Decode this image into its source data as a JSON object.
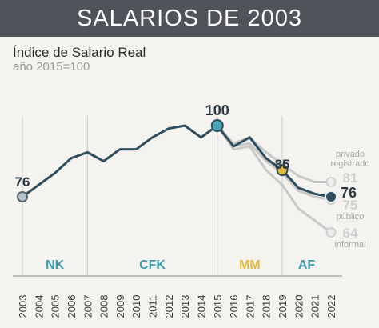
{
  "header": {
    "title": "SALARIOS DE 2003",
    "subtitle": "Índice de Salario Real",
    "subtitle2": "año 2015=100"
  },
  "colors": {
    "main_line": "#2f4e5f",
    "ref_line": "#c9c9c9",
    "nk": "#3b9eb0",
    "cfk": "#3b9eb0",
    "mm": "#e3b93d",
    "af": "#3b9eb0",
    "marker_2015": "#4aa6b5",
    "marker_2019": "#e1b93a",
    "marker_2003": "#b7c3cc"
  },
  "chart_data": {
    "type": "line",
    "x": [
      2003,
      2004,
      2005,
      2006,
      2007,
      2008,
      2009,
      2010,
      2011,
      2012,
      2013,
      2014,
      2015,
      2016,
      2017,
      2018,
      2019,
      2020,
      2021,
      2022
    ],
    "xticks": [
      "2003",
      "2004",
      "2005",
      "2006",
      "2007",
      "2008",
      "2009",
      "2010",
      "2011",
      "2012",
      "2013",
      "2014",
      "2015",
      "2016",
      "2017",
      "2018",
      "2019",
      "2020",
      "2021",
      "2022"
    ],
    "ylim": [
      55,
      110
    ],
    "series": [
      {
        "values": [
          76,
          80,
          84,
          89,
          91,
          88,
          92,
          92,
          96,
          99,
          100,
          96,
          100,
          93,
          96,
          89,
          85,
          79,
          77,
          76
        ]
      },
      {
        "name": "privado registrado",
        "x": [
          2015,
          2016,
          2017,
          2018,
          2019,
          2020,
          2021,
          2022
        ],
        "values": [
          100,
          94,
          96,
          91,
          87,
          83,
          81,
          81
        ]
      },
      {
        "name": "público",
        "x": [
          2015,
          2016,
          2017,
          2018,
          2019,
          2020,
          2021,
          2022
        ],
        "values": [
          100,
          93,
          94,
          88,
          84,
          78,
          76,
          75
        ]
      },
      {
        "name": "informal",
        "x": [
          2015,
          2016,
          2017,
          2018,
          2019,
          2020,
          2021,
          2022
        ],
        "values": [
          100,
          92,
          93,
          85,
          80,
          72,
          68,
          64
        ]
      }
    ],
    "point_labels": [
      {
        "x": 2003,
        "y": 76,
        "text": "76"
      },
      {
        "x": 2015,
        "y": 100,
        "text": "100"
      },
      {
        "x": 2019,
        "y": 85,
        "text": "85"
      },
      {
        "x": 2022,
        "y": 76,
        "text": "76"
      }
    ],
    "legend_labels": [
      {
        "name": "privado registrado",
        "value": "81"
      },
      {
        "name": "público",
        "value": "75"
      },
      {
        "name": "informal",
        "value": "64"
      }
    ],
    "periods": [
      {
        "label": "NK",
        "from": 2003,
        "to": 2007
      },
      {
        "label": "CFK",
        "from": 2007,
        "to": 2015
      },
      {
        "label": "MM",
        "from": 2015,
        "to": 2019
      },
      {
        "label": "AF",
        "from": 2019,
        "to": 2022
      }
    ],
    "dividers": [
      2003,
      2007,
      2015,
      2019
    ]
  }
}
